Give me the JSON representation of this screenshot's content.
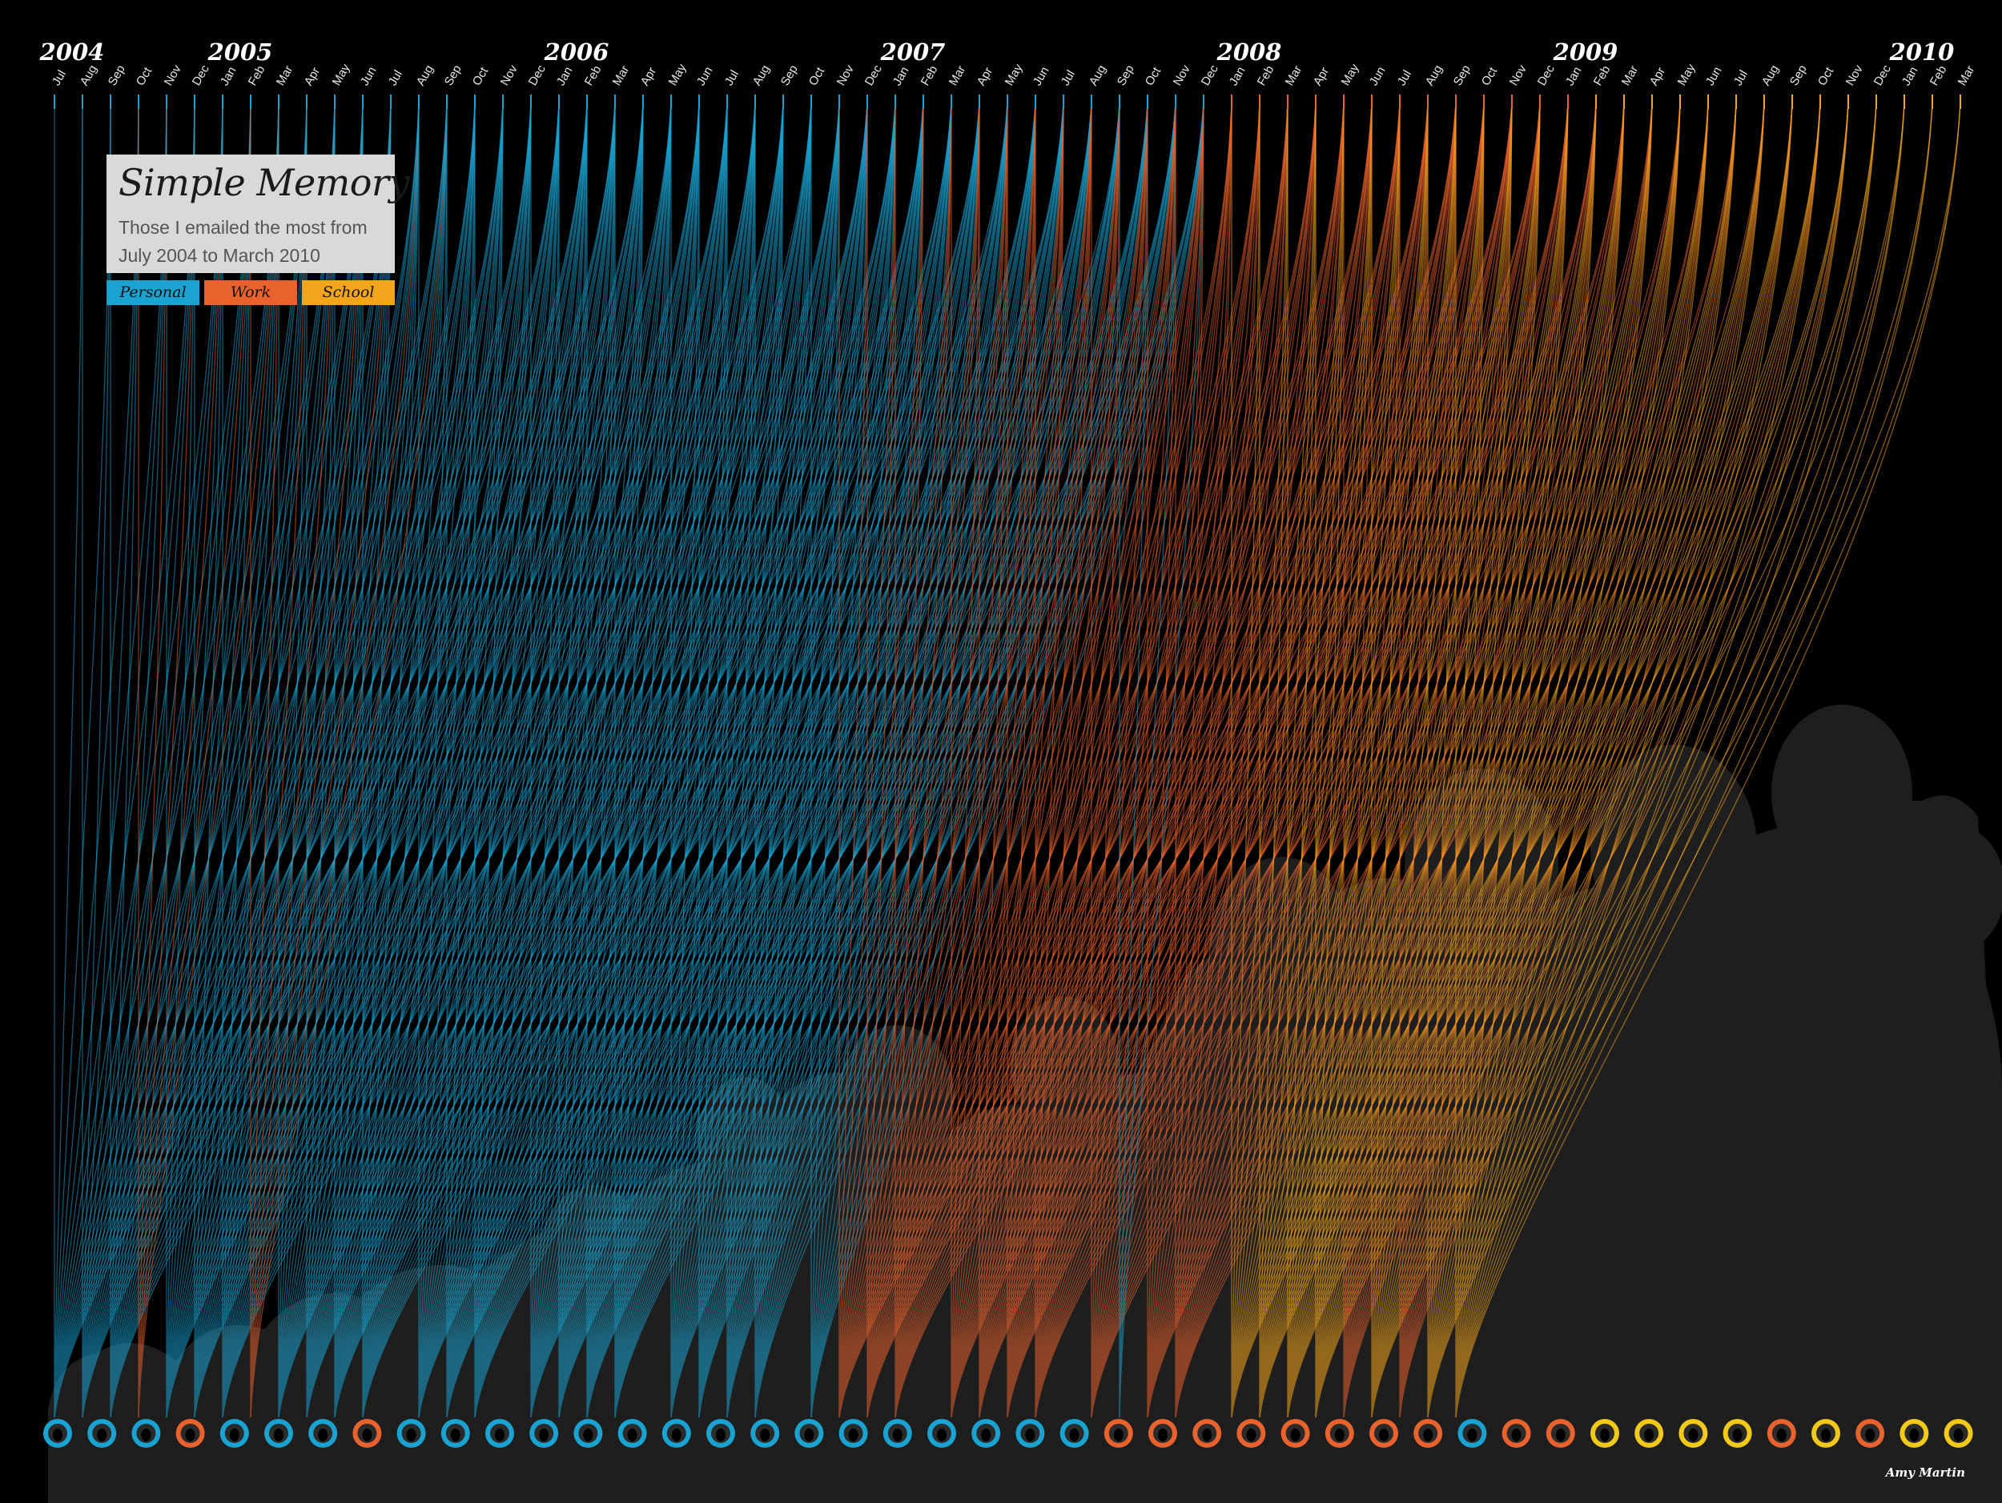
{
  "title": "Simple Memory",
  "subtitle": "Those I emailed the most from July 2004 to March 2010",
  "legend": [
    {
      "label": "Personal",
      "color": "#1aa3d1"
    },
    {
      "label": "Work",
      "color": "#e8622d"
    },
    {
      "label": "School",
      "color": "#f4a51c"
    }
  ],
  "credit": "Amy Martin",
  "years": [
    "2004",
    "2005",
    "2006",
    "2007",
    "2008",
    "2009",
    "2010"
  ],
  "colors": {
    "personal": "#1aa3d1",
    "work": "#e8622d",
    "school": "#f4a51c",
    "school_yellow": "#f2c81a",
    "background": "#000000",
    "silhouette": "#1e1e1e"
  },
  "chart_data": {
    "type": "arc-flow",
    "months": [
      "Jul",
      "Aug",
      "Sep",
      "Oct",
      "Nov",
      "Dec",
      "Jan",
      "Feb",
      "Mar",
      "Apr",
      "May",
      "Jun",
      "Jul",
      "Aug",
      "Sep",
      "Oct",
      "Nov",
      "Dec",
      "Jan",
      "Feb",
      "Mar",
      "Apr",
      "May",
      "Jun",
      "Jul",
      "Aug",
      "Sep",
      "Oct",
      "Nov",
      "Dec",
      "Jan",
      "Feb",
      "Mar",
      "Apr",
      "May",
      "Jun",
      "Jul",
      "Aug",
      "Sep",
      "Oct",
      "Nov",
      "Dec",
      "Jan",
      "Feb",
      "Mar",
      "Apr",
      "May",
      "Jun",
      "Jul",
      "Aug",
      "Sep",
      "Oct",
      "Nov",
      "Dec",
      "Jan",
      "Feb",
      "Mar",
      "Apr",
      "May",
      "Jun",
      "Jul",
      "Aug",
      "Sep",
      "Oct",
      "Nov",
      "Dec",
      "Jan",
      "Feb",
      "Mar"
    ],
    "year_starts": [
      0,
      6,
      18,
      30,
      42,
      54,
      66
    ],
    "month_categories": [
      "personal",
      "personal",
      "personal",
      "personal",
      "personal",
      "personal",
      "personal",
      "personal",
      "personal",
      "personal",
      "personal",
      "personal",
      "personal",
      "personal",
      "personal",
      "personal",
      "personal",
      "personal",
      "personal",
      "personal",
      "personal",
      "personal",
      "personal",
      "personal",
      "personal",
      "personal",
      "personal",
      "personal",
      "personal",
      "personal",
      "personal",
      "personal",
      "personal",
      "personal",
      "personal",
      "personal",
      "personal",
      "personal",
      "personal",
      "personal",
      "personal",
      "personal",
      "work",
      "work",
      "work",
      "work",
      "work",
      "work",
      "work",
      "work",
      "work",
      "work",
      "work",
      "work",
      "work",
      "school",
      "school",
      "school",
      "school",
      "school",
      "school",
      "school",
      "school",
      "school",
      "school",
      "school",
      "school",
      "school",
      "school"
    ],
    "people": [
      {
        "category": "personal",
        "span": [
          0,
          20
        ]
      },
      {
        "category": "personal",
        "span": [
          1,
          21
        ]
      },
      {
        "category": "personal",
        "span": [
          2,
          22
        ]
      },
      {
        "category": "work",
        "span": [
          3,
          8
        ]
      },
      {
        "category": "personal",
        "span": [
          4,
          24
        ]
      },
      {
        "category": "personal",
        "span": [
          5,
          26
        ]
      },
      {
        "category": "personal",
        "span": [
          6,
          27
        ]
      },
      {
        "category": "work",
        "span": [
          7,
          14
        ]
      },
      {
        "category": "personal",
        "span": [
          8,
          29
        ]
      },
      {
        "category": "personal",
        "span": [
          9,
          31
        ]
      },
      {
        "category": "personal",
        "span": [
          10,
          33
        ]
      },
      {
        "category": "personal",
        "span": [
          11,
          34
        ]
      },
      {
        "category": "personal",
        "span": [
          13,
          36
        ]
      },
      {
        "category": "personal",
        "span": [
          14,
          37
        ]
      },
      {
        "category": "personal",
        "span": [
          15,
          38
        ]
      },
      {
        "category": "personal",
        "span": [
          17,
          40
        ]
      },
      {
        "category": "personal",
        "span": [
          18,
          41
        ]
      },
      {
        "category": "personal",
        "span": [
          19,
          41
        ]
      },
      {
        "category": "personal",
        "span": [
          20,
          41
        ]
      },
      {
        "category": "personal",
        "span": [
          22,
          41
        ]
      },
      {
        "category": "personal",
        "span": [
          23,
          41
        ]
      },
      {
        "category": "personal",
        "span": [
          24,
          41
        ]
      },
      {
        "category": "personal",
        "span": [
          25,
          41
        ]
      },
      {
        "category": "personal",
        "span": [
          27,
          41
        ]
      },
      {
        "category": "work",
        "span": [
          28,
          52
        ]
      },
      {
        "category": "work",
        "span": [
          29,
          53
        ]
      },
      {
        "category": "work",
        "span": [
          30,
          53
        ]
      },
      {
        "category": "work",
        "span": [
          32,
          54
        ]
      },
      {
        "category": "work",
        "span": [
          33,
          55
        ]
      },
      {
        "category": "work",
        "span": [
          34,
          56
        ]
      },
      {
        "category": "work",
        "span": [
          35,
          57
        ]
      },
      {
        "category": "work",
        "span": [
          37,
          58
        ]
      },
      {
        "category": "personal",
        "span": [
          38,
          41
        ]
      },
      {
        "category": "work",
        "span": [
          39,
          60
        ]
      },
      {
        "category": "work",
        "span": [
          40,
          61
        ]
      },
      {
        "category": "school",
        "span": [
          42,
          63
        ]
      },
      {
        "category": "school",
        "span": [
          43,
          64
        ]
      },
      {
        "category": "school",
        "span": [
          44,
          65
        ]
      },
      {
        "category": "school",
        "span": [
          45,
          66
        ]
      },
      {
        "category": "work",
        "span": [
          46,
          63
        ]
      },
      {
        "category": "school",
        "span": [
          47,
          68
        ]
      },
      {
        "category": "work",
        "span": [
          48,
          64
        ]
      },
      {
        "category": "school",
        "span": [
          49,
          68
        ]
      },
      {
        "category": "school",
        "span": [
          50,
          68
        ]
      }
    ]
  }
}
